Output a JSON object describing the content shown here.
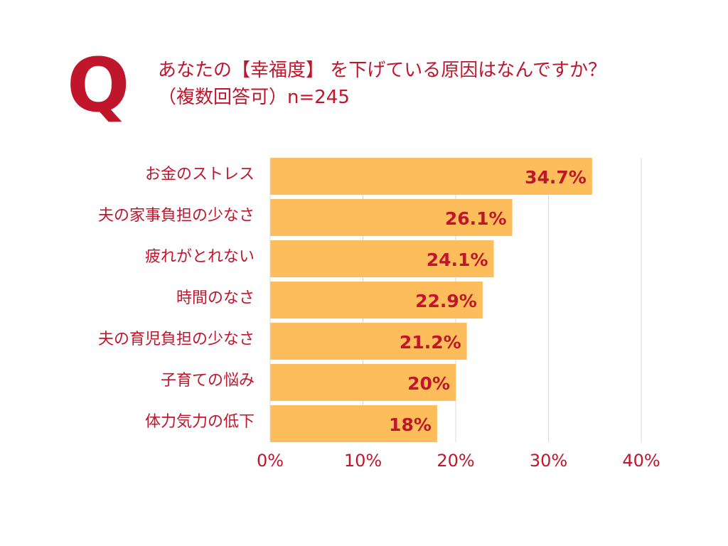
{
  "question": {
    "mark": "Q",
    "line1": "あなたの【幸福度】 を下げている原因はなんですか？",
    "line2": "（複数回答可）n=245"
  },
  "colors": {
    "bar": "#fdbd5a",
    "accent": "#c0162c",
    "grid": "#d9d9d9"
  },
  "chart_data": {
    "type": "bar",
    "orientation": "horizontal",
    "categories": [
      "お金のストレス",
      "夫の家事負担の少なさ",
      "疲れがとれない",
      "時間のなさ",
      "夫の育児負担の少なさ",
      "子育ての悩み",
      "体力気力の低下"
    ],
    "values": [
      34.7,
      26.1,
      24.1,
      22.9,
      21.2,
      20,
      18
    ],
    "data_labels": [
      "34.7%",
      "26.1%",
      "24.1%",
      "22.9%",
      "21.2%",
      "20%",
      "18%"
    ],
    "xlim": [
      0,
      40
    ],
    "x_ticks": [
      0,
      10,
      20,
      30,
      40
    ],
    "x_tick_labels": [
      "0%",
      "10%",
      "20%",
      "30%",
      "40%"
    ],
    "grid": true,
    "legend": "none"
  }
}
